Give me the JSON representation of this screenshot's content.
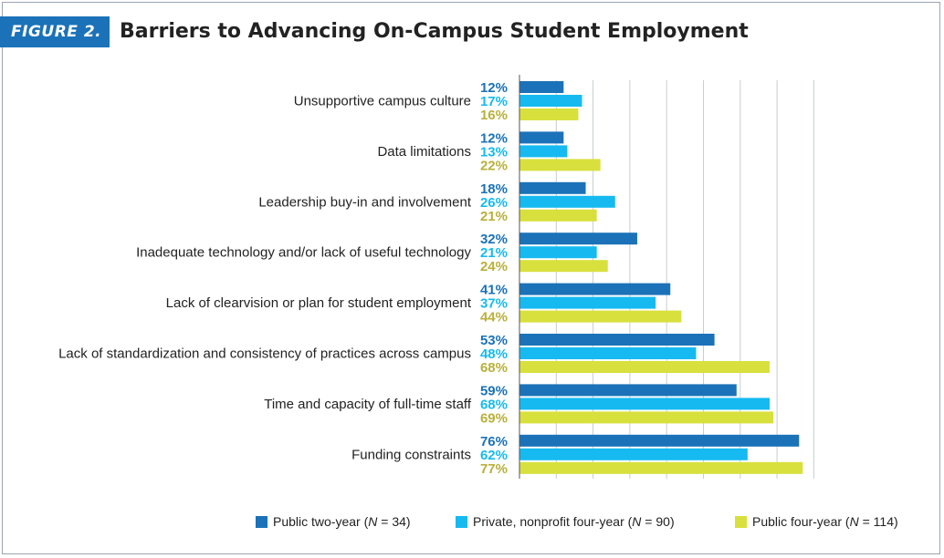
{
  "figure": {
    "label": "FIGURE 2.",
    "title": "Barriers to Advancing On-Campus Student Employment"
  },
  "colors": {
    "accent": "#1b72b8",
    "series": [
      "#1b72b8",
      "#16baf0",
      "#d8e03d"
    ],
    "series_labels": [
      "#1b72b8",
      "#16baf0",
      "#b8b03a"
    ],
    "grid": "#c7cdd2",
    "axis": "#555555"
  },
  "legend": [
    {
      "prefix": "Public two-year (",
      "n": "N",
      "suffix": " = 34)"
    },
    {
      "prefix": "Private, nonprofit four-year (",
      "n": "N",
      "suffix": " = 90)"
    },
    {
      "prefix": "Public four-year (",
      "n": "N",
      "suffix": " = 114)"
    }
  ],
  "chart_data": {
    "type": "bar",
    "orientation": "horizontal",
    "title": "Barriers to Advancing On-Campus Student Employment",
    "categories": [
      "Unsupportive campus culture",
      "Data limitations",
      "Leadership buy-in and involvement",
      "Inadequate technology and/or lack of useful technology",
      "Lack of clearvision or plan for student employment",
      "Lack of standardization and consistency of practices across campus",
      "Time and capacity of full-time staff",
      "Funding constraints"
    ],
    "series": [
      {
        "name": "Public two-year (N = 34)",
        "values": [
          12,
          12,
          18,
          32,
          41,
          53,
          59,
          76
        ]
      },
      {
        "name": "Private, nonprofit four-year (N = 90)",
        "values": [
          17,
          13,
          26,
          21,
          37,
          48,
          68,
          62
        ]
      },
      {
        "name": "Public four-year (N = 114)",
        "values": [
          16,
          22,
          21,
          24,
          44,
          68,
          69,
          77
        ]
      }
    ],
    "value_suffix": "%",
    "xlim": [
      0,
      100
    ],
    "grid": true,
    "legend_position": "bottom"
  }
}
